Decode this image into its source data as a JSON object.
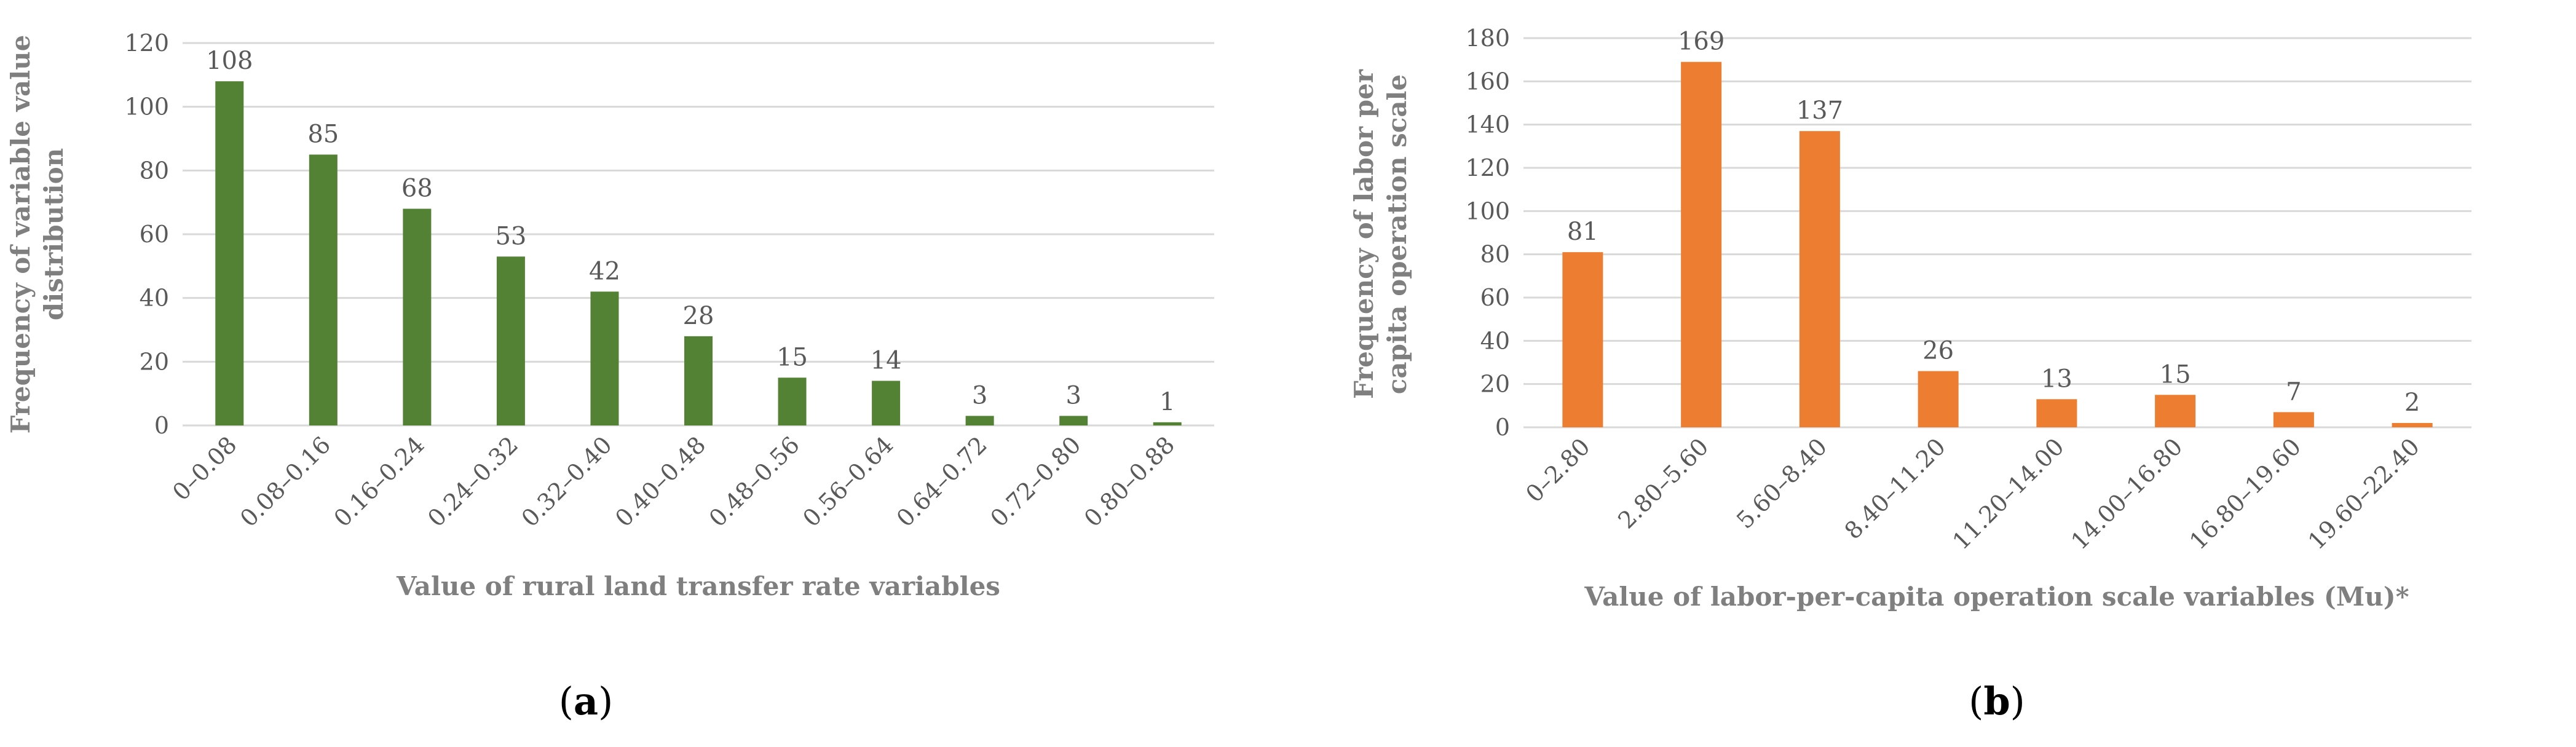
{
  "chart_data": [
    {
      "type": "bar",
      "panel_label": "a",
      "categories": [
        "0–0.08",
        "0.08–0.16",
        "0.16–0.24",
        "0.24–0.32",
        "0.32–0.40",
        "0.40–0.48",
        "0.48–0.56",
        "0.56–0.64",
        "0.64–0.72",
        "0.72–0.80",
        "0.80–0.88"
      ],
      "values": [
        108,
        85,
        68,
        53,
        42,
        28,
        15,
        14,
        3,
        3,
        1
      ],
      "xlabel": "Value of rural land transfer rate variables",
      "ylabel": "Frequency of variable value distribution",
      "ylim": [
        0,
        120
      ],
      "yticks": [
        0,
        20,
        40,
        60,
        80,
        100,
        120
      ],
      "color": "#548235",
      "grid": true,
      "legend": "none"
    },
    {
      "type": "bar",
      "panel_label": "b",
      "categories": [
        "0–2.80",
        "2.80–5.60",
        "5.60–8.40",
        "8.40–11.20",
        "11.20–14.00",
        "14.00–16.80",
        "16.80–19.60",
        "19.60–22.40"
      ],
      "values": [
        81,
        169,
        137,
        26,
        13,
        15,
        7,
        2
      ],
      "xlabel": "Value of labor-per-capita operation scale variables (Mu)*",
      "ylabel": "Frequency of labor per capita operation scale",
      "ylim": [
        0,
        180
      ],
      "yticks": [
        0,
        20,
        40,
        60,
        80,
        100,
        120,
        140,
        160,
        180
      ],
      "color": "#ed7d31",
      "grid": true,
      "legend": "none"
    }
  ]
}
